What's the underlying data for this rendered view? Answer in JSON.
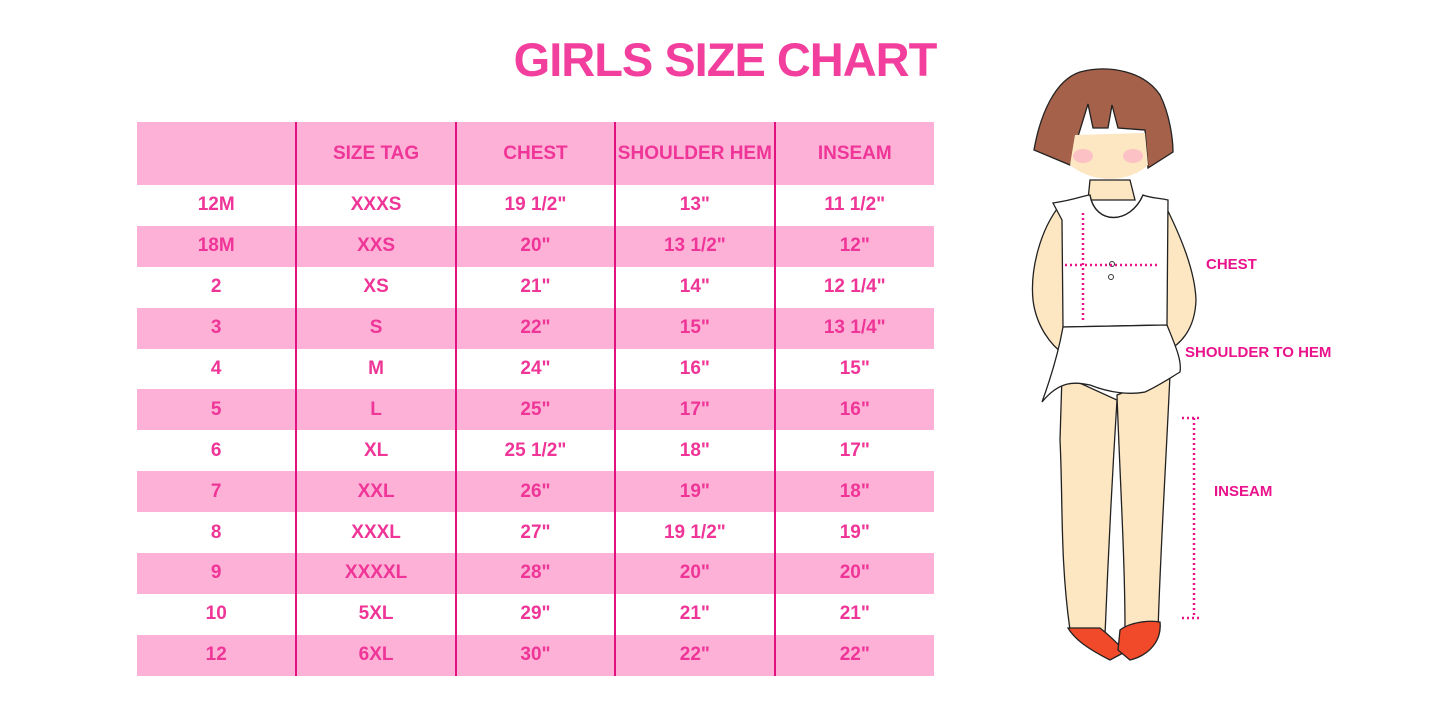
{
  "title": "GIRLS SIZE CHART",
  "colors": {
    "accent_text": "#ef3597",
    "row_pink": "#fdb1d6",
    "divider": "#e1117f",
    "label": "#ea128b"
  },
  "chart_data": {
    "type": "table",
    "columns": [
      "",
      "SIZE TAG",
      "CHEST",
      "SHOULDER HEM",
      "INSEAM"
    ],
    "rows": [
      [
        "12M",
        "XXXS",
        "19 1/2\"",
        "13\"",
        "11 1/2\""
      ],
      [
        "18M",
        "XXS",
        "20\"",
        "13 1/2\"",
        "12\""
      ],
      [
        "2",
        "XS",
        "21\"",
        "14\"",
        "12 1/4\""
      ],
      [
        "3",
        "S",
        "22\"",
        "15\"",
        "13 1/4\""
      ],
      [
        "4",
        "M",
        "24\"",
        "16\"",
        "15\""
      ],
      [
        "5",
        "L",
        "25\"",
        "17\"",
        "16\""
      ],
      [
        "6",
        "XL",
        "25 1/2\"",
        "18\"",
        "17\""
      ],
      [
        "7",
        "XXL",
        "26\"",
        "19\"",
        "18\""
      ],
      [
        "8",
        "XXXL",
        "27\"",
        "19 1/2\"",
        "19\""
      ],
      [
        "9",
        "XXXXL",
        "28\"",
        "20\"",
        "20\""
      ],
      [
        "10",
        "5XL",
        "29\"",
        "21\"",
        "21\""
      ],
      [
        "12",
        "6XL",
        "30\"",
        "22\"",
        "22\""
      ]
    ]
  },
  "illustration": {
    "labels": {
      "chest": "CHEST",
      "shoulder_to_hem": "SHOULDER TO HEM",
      "inseam": "INSEAM"
    }
  }
}
